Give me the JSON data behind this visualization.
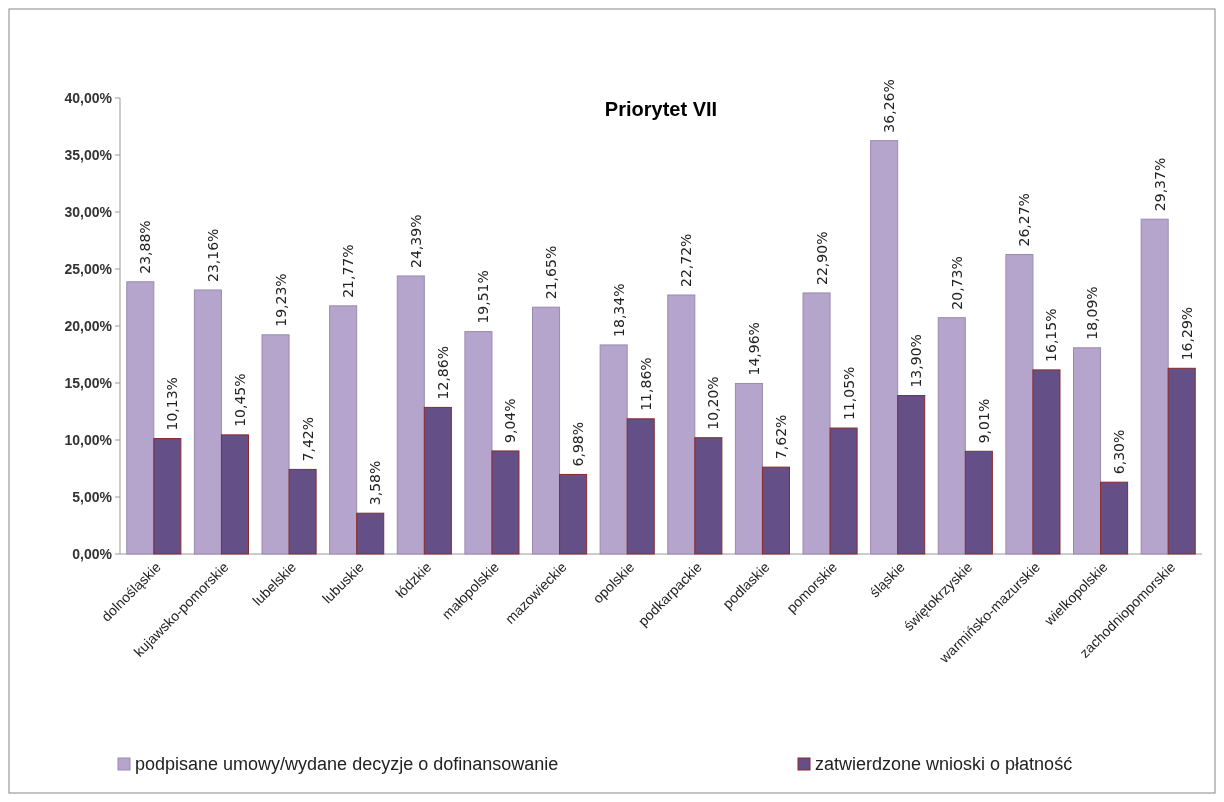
{
  "chart_data": {
    "type": "bar",
    "title": "Priorytet VII",
    "categories": [
      "dolnośląskie",
      "kujawsko-pomorskie",
      "lubelskie",
      "lubuskie",
      "łódzkie",
      "małopolskie",
      "mazowieckie",
      "opolskie",
      "podkarpackie",
      "podlaskie",
      "pomorskie",
      "śląskie",
      "świętokrzyskie",
      "warmińsko-mazurskie",
      "wielkopolskie",
      "zachodniopomorskie"
    ],
    "series": [
      {
        "name": "podpisane umowy/wydane decyzje o dofinansowanie",
        "color": "#b5a5cc",
        "values": [
          23.88,
          23.16,
          19.23,
          21.77,
          24.39,
          19.51,
          21.65,
          18.34,
          22.72,
          14.96,
          22.9,
          36.26,
          20.73,
          26.27,
          18.09,
          29.37
        ],
        "value_labels": [
          "23,88%",
          "23,16%",
          "19,23%",
          "21,77%",
          "24,39%",
          "19,51%",
          "21,65%",
          "18,34%",
          "22,72%",
          "14,96%",
          "22,90%",
          "36,26%",
          "20,73%",
          "26,27%",
          "18,09%",
          "29,37%"
        ]
      },
      {
        "name": "zatwierdzone wnioski o płatność",
        "color": "#644f86",
        "values": [
          10.13,
          10.45,
          7.42,
          3.58,
          12.86,
          9.04,
          6.98,
          11.86,
          10.2,
          7.62,
          11.05,
          13.9,
          9.01,
          16.15,
          6.3,
          16.29
        ],
        "value_labels": [
          "10,13%",
          "10,45%",
          "7,42%",
          "3,58%",
          "12,86%",
          "9,04%",
          "6,98%",
          "11,86%",
          "10,20%",
          "7,62%",
          "11,05%",
          "13,90%",
          "9,01%",
          "16,15%",
          "6,30%",
          "16,29%"
        ]
      }
    ],
    "ylim": [
      0,
      40
    ],
    "yticks": [
      {
        "value": 0,
        "label": "0,00%"
      },
      {
        "value": 5,
        "label": "5,00%"
      },
      {
        "value": 10,
        "label": "10,00%"
      },
      {
        "value": 15,
        "label": "15,00%"
      },
      {
        "value": 20,
        "label": "20,00%"
      },
      {
        "value": 25,
        "label": "25,00%"
      },
      {
        "value": 30,
        "label": "30,00%"
      },
      {
        "value": 35,
        "label": "35,00%"
      },
      {
        "value": 40,
        "label": "40,00%"
      }
    ],
    "grid": false,
    "legend": "bottom"
  }
}
